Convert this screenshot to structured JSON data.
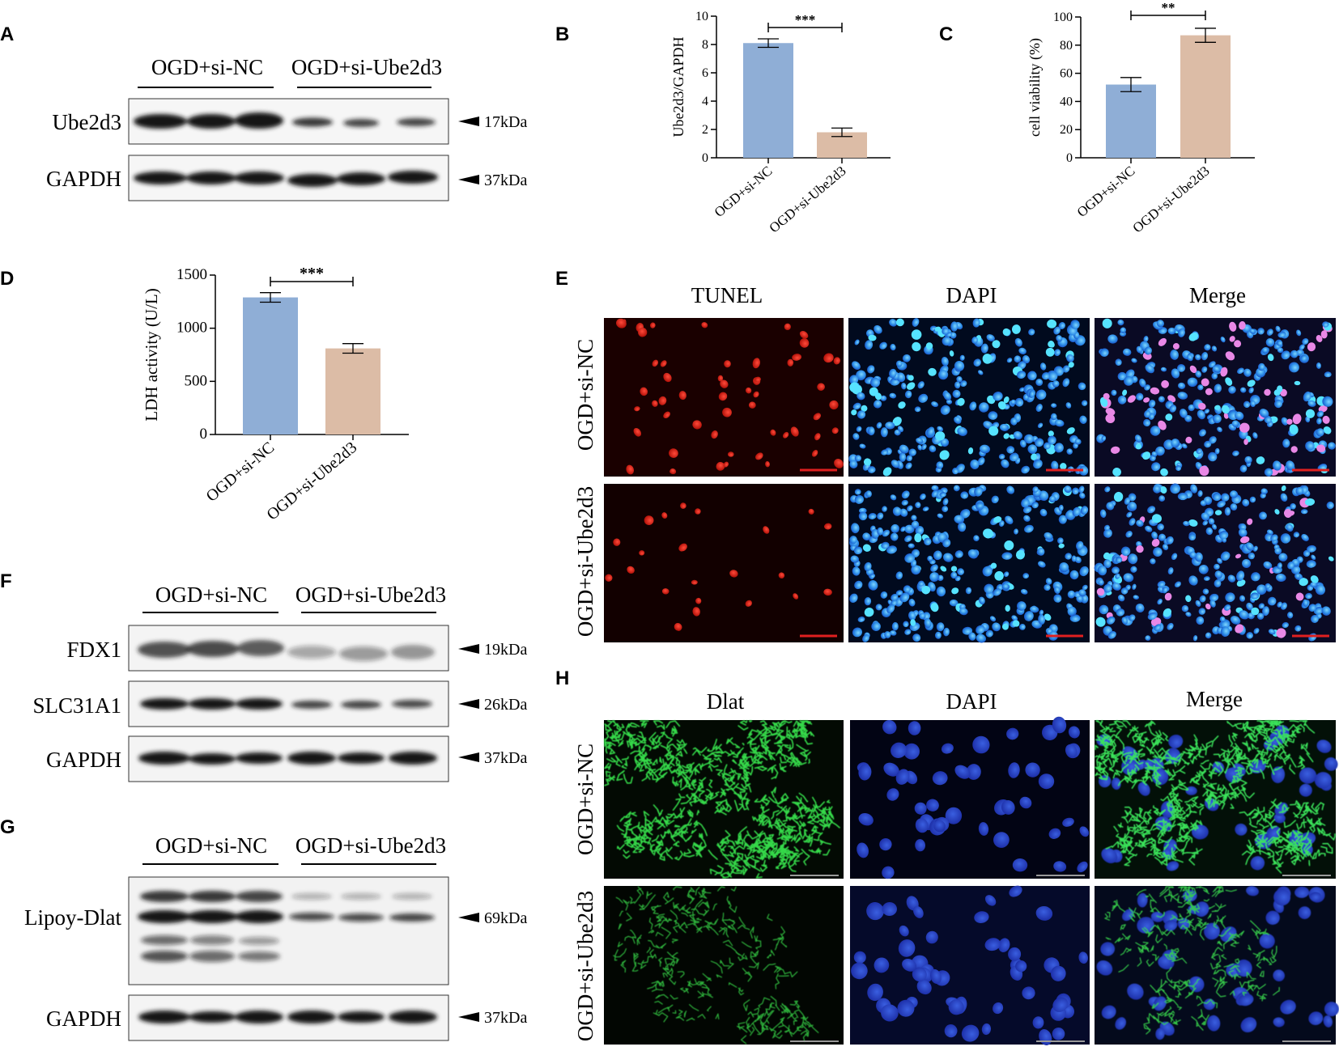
{
  "panel_labels": [
    "A",
    "B",
    "C",
    "D",
    "E",
    "F",
    "G",
    "H"
  ],
  "chart_data": [
    {
      "panel": "B",
      "type": "bar",
      "categories": [
        "OGD+si-NC",
        "OGD+si-Ube2d3"
      ],
      "values": [
        8.1,
        1.8
      ],
      "errors": [
        0.3,
        0.3
      ],
      "ylabel": "Ube2d3/GAPDH",
      "xlabel": "",
      "ylim": [
        0,
        10
      ],
      "yticks": [
        "0",
        "2",
        "4",
        "6",
        "8",
        "10"
      ],
      "significance": "***",
      "colors": [
        "#8faed6",
        "#dcbca6"
      ],
      "grid": false,
      "legend": "none"
    },
    {
      "panel": "C",
      "type": "bar",
      "categories": [
        "OGD+si-NC",
        "OGD+si-Ube2d3"
      ],
      "values": [
        52,
        87
      ],
      "errors": [
        5,
        5
      ],
      "ylabel": "cell viability (%)",
      "xlabel": "",
      "ylim": [
        0,
        100
      ],
      "yticks": [
        "0",
        "20",
        "40",
        "60",
        "80",
        "100"
      ],
      "significance": "**",
      "colors": [
        "#8faed6",
        "#dcbca6"
      ],
      "grid": false,
      "legend": "none"
    },
    {
      "panel": "D",
      "type": "bar",
      "categories": [
        "OGD+si-NC",
        "OGD+si-Ube2d3"
      ],
      "values": [
        1290,
        810
      ],
      "errors": [
        45,
        45
      ],
      "ylabel": "LDH activity (U/L)",
      "xlabel": "",
      "ylim": [
        0,
        1500
      ],
      "yticks": [
        "0",
        "500",
        "1000",
        "1500"
      ],
      "significance": "***",
      "colors": [
        "#8faed6",
        "#dcbca6"
      ],
      "grid": false,
      "legend": "none"
    }
  ],
  "blots": {
    "A": {
      "groups": [
        "OGD+si-NC",
        "OGD+si-Ube2d3"
      ],
      "rows": [
        {
          "label": "Ube2d3",
          "kda": "17kDa"
        },
        {
          "label": "GAPDH",
          "kda": "37kDa"
        }
      ]
    },
    "F": {
      "groups": [
        "OGD+si-NC",
        "OGD+si-Ube2d3"
      ],
      "rows": [
        {
          "label": "FDX1",
          "kda": "19kDa"
        },
        {
          "label": "SLC31A1",
          "kda": "26kDa"
        },
        {
          "label": "GAPDH",
          "kda": "37kDa"
        }
      ]
    },
    "G": {
      "groups": [
        "OGD+si-NC",
        "OGD+si-Ube2d3"
      ],
      "rows": [
        {
          "label": "Lipoy-Dlat",
          "kda": "69kDa"
        },
        {
          "label": "GAPDH",
          "kda": "37kDa"
        }
      ]
    }
  },
  "micro": {
    "E": {
      "columns": [
        "TUNEL",
        "DAPI",
        "Merge"
      ],
      "rows": [
        "OGD+si-NC",
        "OGD+si-Ube2d3"
      ]
    },
    "H": {
      "columns": [
        "Dlat",
        "DAPI",
        "Merge"
      ],
      "rows": [
        "OGD+si-NC",
        "OGD+si-Ube2d3"
      ]
    }
  }
}
